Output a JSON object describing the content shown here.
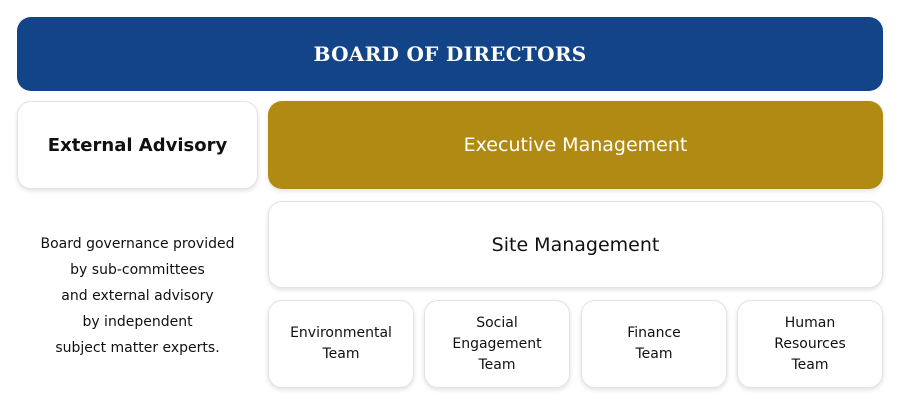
{
  "board": {
    "label": "BOARD OF DIRECTORS"
  },
  "external_advisory": {
    "label": "External Advisory"
  },
  "executive": {
    "label": "Executive Management"
  },
  "site": {
    "label": "Site Management"
  },
  "teams": [
    {
      "lines": [
        "Environmental",
        "Team"
      ]
    },
    {
      "lines": [
        "Social",
        "Engagement",
        "Team"
      ]
    },
    {
      "lines": [
        "Finance",
        "Team"
      ]
    },
    {
      "lines": [
        "Human",
        "Resources",
        "Team"
      ]
    }
  ],
  "note": {
    "lines": [
      "Board governance provided",
      "by sub-committees",
      "and external advisory",
      "by independent",
      "subject matter experts."
    ]
  },
  "colors": {
    "board_bg": "#134488",
    "executive_bg": "#b08a12",
    "box_bg": "#ffffff"
  }
}
